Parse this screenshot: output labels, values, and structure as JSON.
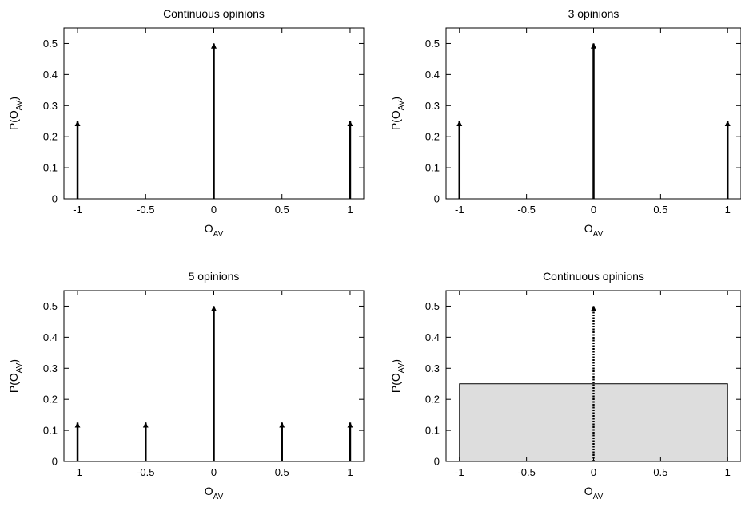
{
  "chart_data": [
    {
      "type": "arrow-stem",
      "title": "Continuous opinions",
      "xlabel": "O",
      "xlabel_sub": "AV",
      "ylabel_pre": "P(O",
      "ylabel_sub": "AV",
      "ylabel_post": ")",
      "xlim": [
        -1.1,
        1.1
      ],
      "ylim": [
        0,
        0.55
      ],
      "xticks": [
        "-1",
        "-0.5",
        "0",
        "0.5",
        "1"
      ],
      "yticks": [
        "0",
        "0.1",
        "0.2",
        "0.3",
        "0.4",
        "0.5"
      ],
      "grid": false,
      "arrows": [
        {
          "x": -1,
          "y": 0.25
        },
        {
          "x": 0,
          "y": 0.5
        },
        {
          "x": 1,
          "y": 0.25
        }
      ]
    },
    {
      "type": "arrow-stem",
      "title": "3 opinions",
      "xlabel": "O",
      "xlabel_sub": "AV",
      "ylabel_pre": "P(O",
      "ylabel_sub": "AV",
      "ylabel_post": ")",
      "xlim": [
        -1.1,
        1.1
      ],
      "ylim": [
        0,
        0.55
      ],
      "xticks": [
        "-1",
        "-0.5",
        "0",
        "0.5",
        "1"
      ],
      "yticks": [
        "0",
        "0.1",
        "0.2",
        "0.3",
        "0.4",
        "0.5"
      ],
      "grid": false,
      "arrows": [
        {
          "x": -1,
          "y": 0.25
        },
        {
          "x": 0,
          "y": 0.5
        },
        {
          "x": 1,
          "y": 0.25
        }
      ]
    },
    {
      "type": "arrow-stem",
      "title": "5 opinions",
      "xlabel": "O",
      "xlabel_sub": "AV",
      "ylabel_pre": "P(O",
      "ylabel_sub": "AV",
      "ylabel_post": ")",
      "xlim": [
        -1.1,
        1.1
      ],
      "ylim": [
        0,
        0.55
      ],
      "xticks": [
        "-1",
        "-0.5",
        "0",
        "0.5",
        "1"
      ],
      "yticks": [
        "0",
        "0.1",
        "0.2",
        "0.3",
        "0.4",
        "0.5"
      ],
      "grid": false,
      "arrows": [
        {
          "x": -1,
          "y": 0.125
        },
        {
          "x": -0.5,
          "y": 0.125
        },
        {
          "x": 0,
          "y": 0.5
        },
        {
          "x": 0.5,
          "y": 0.125
        },
        {
          "x": 1,
          "y": 0.125
        }
      ]
    },
    {
      "type": "arrow-stem",
      "title": "Continuous opinions",
      "xlabel": "O",
      "xlabel_sub": "AV",
      "ylabel_pre": "P(O",
      "ylabel_sub": "AV",
      "ylabel_post": ")",
      "xlim": [
        -1.1,
        1.1
      ],
      "ylim": [
        0,
        0.55
      ],
      "xticks": [
        "-1",
        "-0.5",
        "0",
        "0.5",
        "1"
      ],
      "yticks": [
        "0",
        "0.1",
        "0.2",
        "0.3",
        "0.4",
        "0.5"
      ],
      "grid": false,
      "uniform_density": {
        "x_from": -1,
        "x_to": 1,
        "y": 0.25,
        "fill": "#dddddd"
      },
      "arrows": [
        {
          "x": 0,
          "y": 0.5,
          "dotted_stem": true
        }
      ]
    }
  ]
}
